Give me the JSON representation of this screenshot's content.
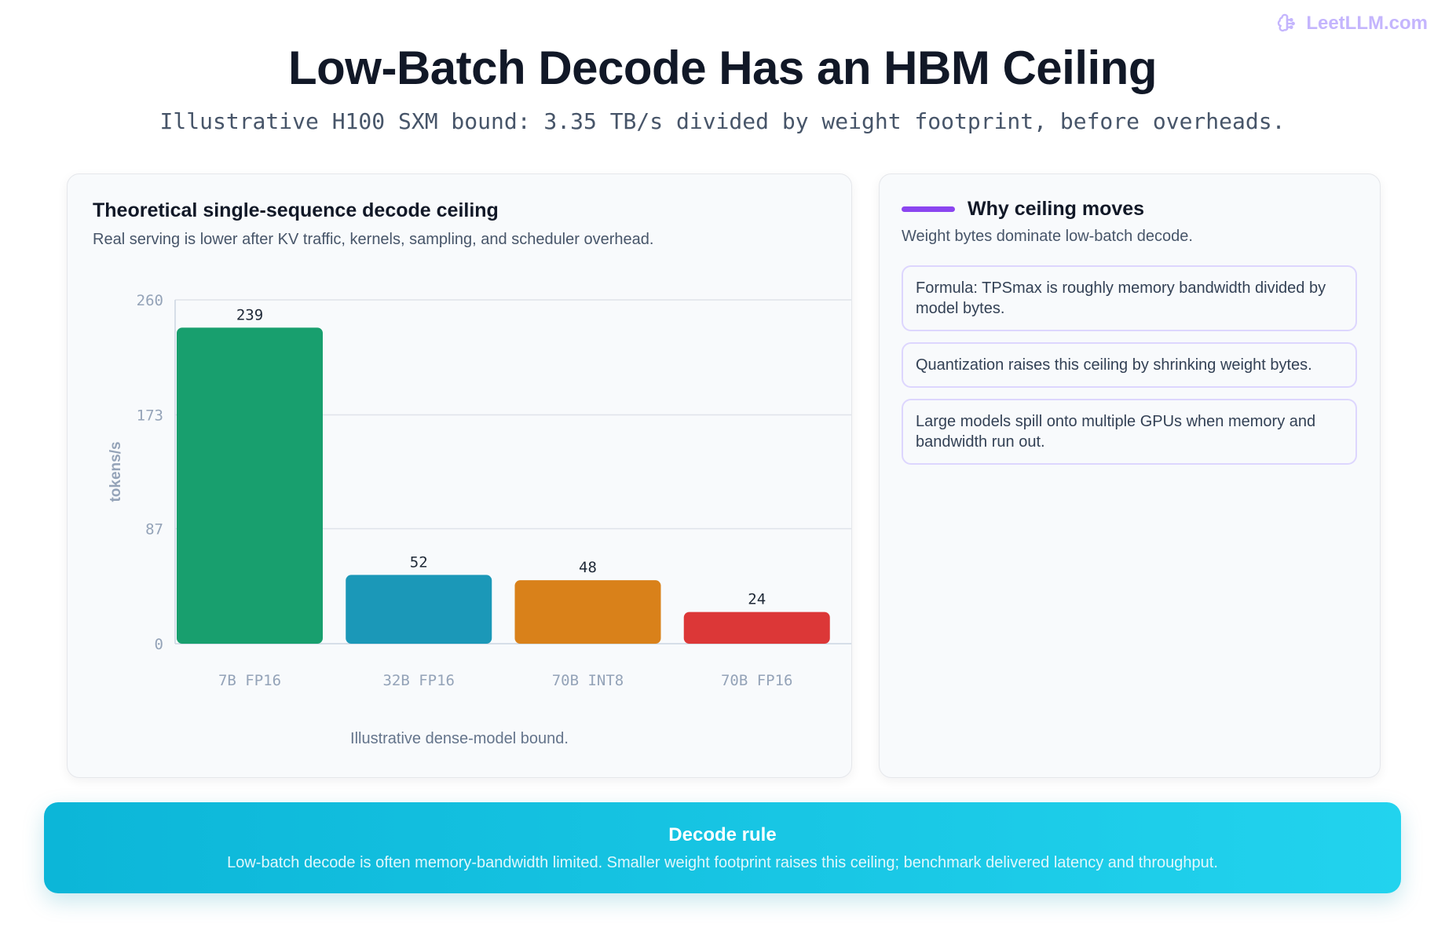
{
  "brand": {
    "name": "LeetLLM.com",
    "icon": "brain-icon"
  },
  "header": {
    "title": "Low-Batch Decode Has an HBM Ceiling",
    "subtitle": "Illustrative H100 SXM bound: 3.35 TB/s divided by weight footprint, before overheads."
  },
  "chart_panel": {
    "title": "Theoretical single-sequence decode ceiling",
    "subtitle": "Real serving is lower after KV traffic, kernels, sampling, and scheduler overhead.",
    "footnote": "Illustrative dense-model bound."
  },
  "chart_data": {
    "type": "bar",
    "title": "Theoretical single-sequence decode ceiling",
    "categories": [
      "7B FP16",
      "32B FP16",
      "70B INT8",
      "70B FP16"
    ],
    "values": [
      239,
      52,
      48,
      24
    ],
    "colors": [
      "#189f6e",
      "#1b98b8",
      "#d9811a",
      "#dc3737"
    ],
    "xlabel": "",
    "ylabel": "tokens/s",
    "ylim": [
      0,
      260
    ],
    "yticks": [
      0,
      87,
      173,
      260
    ],
    "grid": true,
    "data_labels": true
  },
  "side_panel": {
    "title": "Why ceiling moves",
    "subtitle": "Weight bytes dominate low-batch decode.",
    "accent": "#8b45f0",
    "notes": [
      "Formula: TPSmax is roughly memory bandwidth divided by model bytes.",
      "Quantization raises this ceiling by shrinking weight bytes.",
      "Large models spill onto multiple GPUs when memory and bandwidth run out."
    ]
  },
  "rule": {
    "title": "Decode rule",
    "text": "Low-batch decode is often memory-bandwidth limited. Smaller weight footprint raises this ceiling; benchmark delivered latency and throughput."
  }
}
